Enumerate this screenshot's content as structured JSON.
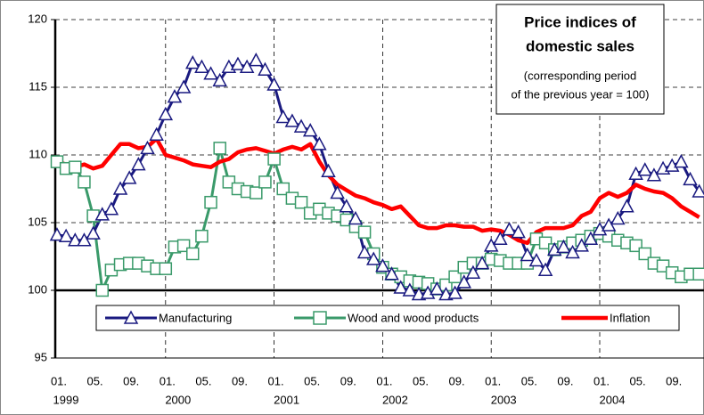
{
  "chart_data": {
    "type": "line",
    "title_lines": [
      "Price indices of",
      "domestic sales"
    ],
    "subtitle_lines": [
      "(corresponding period",
      "of the previous year = 100)"
    ],
    "categories": [
      "01.",
      null,
      null,
      null,
      "05.",
      null,
      null,
      null,
      "09.",
      null,
      null,
      null,
      "01.",
      null,
      null,
      null,
      "05.",
      null,
      null,
      null,
      "09.",
      null,
      null,
      null,
      "01.",
      null,
      null,
      null,
      "05.",
      null,
      null,
      null,
      "09.",
      null,
      null,
      null,
      "01.",
      null,
      null,
      null,
      "05.",
      null,
      null,
      null,
      "09.",
      null,
      null,
      null,
      "01.",
      null,
      null,
      null,
      "05.",
      null,
      null,
      null,
      "09.",
      null,
      null,
      null,
      "01.",
      null,
      null,
      null,
      "05.",
      null,
      null,
      null,
      "09.",
      null,
      null,
      null
    ],
    "years": [
      "1999",
      "2000",
      "2001",
      "2002",
      "2003",
      "2004"
    ],
    "ylim": [
      95,
      120
    ],
    "yticks": [
      95,
      100,
      105,
      110,
      115,
      120
    ],
    "grid": true,
    "legend": "bottom",
    "series": [
      {
        "name": "Manufacturing",
        "color": "#1a1a80",
        "marker": "triangle",
        "values": [
          104.1,
          104,
          103.7,
          103.7,
          104.2,
          105.6,
          106,
          107.5,
          108.3,
          109.3,
          110.5,
          111.5,
          113,
          114.3,
          115,
          116.8,
          116.5,
          116,
          115.5,
          116.5,
          116.7,
          116.5,
          117,
          116.3,
          115.2,
          112.8,
          112.5,
          112.1,
          111.8,
          110.8,
          108.8,
          107.2,
          106.2,
          105.3,
          102.8,
          102.3,
          101.8,
          101.2,
          100.2,
          100,
          99.7,
          99.8,
          100.1,
          99.7,
          99.8,
          100.6,
          101.3,
          102,
          103.3,
          103.8,
          104.5,
          104.3,
          102.6,
          102.2,
          101.5,
          103,
          103.2,
          102.8,
          103.3,
          103.8,
          104.5,
          104.8,
          105.3,
          106.2,
          108.6,
          108.9,
          108.5,
          109,
          109.2,
          109.5,
          108.2,
          107.3
        ]
      },
      {
        "name": "Wood and wood products",
        "color": "#3a9a6a",
        "marker": "square",
        "values": [
          109.5,
          109,
          109.1,
          108,
          105.5,
          100,
          101.5,
          101.9,
          102,
          102,
          101.8,
          101.6,
          101.6,
          103.2,
          103.3,
          102.7,
          104,
          106.5,
          110.5,
          108,
          107.5,
          107.3,
          107.2,
          108,
          109.7,
          107.5,
          106.8,
          106.5,
          105.7,
          106,
          105.7,
          105.5,
          105.2,
          104.7,
          104.3,
          102.7,
          101.7,
          101.2,
          101,
          100.7,
          100.6,
          100.5,
          100.1,
          100.4,
          101,
          101.7,
          102,
          102,
          102.3,
          102.2,
          102,
          102,
          102,
          103.8,
          103.5,
          103,
          103.2,
          103.5,
          103.7,
          104,
          104.2,
          104,
          103.7,
          103.5,
          103.3,
          102.7,
          102,
          101.8,
          101.3,
          101,
          101.2,
          101.2
        ]
      },
      {
        "name": "Inflation",
        "color": "#ff0000",
        "marker": "none",
        "values": [
          109.5,
          109.3,
          109.1,
          109.3,
          109,
          109.2,
          110,
          110.8,
          110.8,
          110.5,
          110.6,
          111.2,
          110,
          109.8,
          109.6,
          109.3,
          109.2,
          109.1,
          109.5,
          109.7,
          110.2,
          110.4,
          110.5,
          110.3,
          110.1,
          110.4,
          110.6,
          110.4,
          110.8,
          109.5,
          108.5,
          107.8,
          107.4,
          107,
          106.8,
          106.5,
          106.3,
          106,
          106.2,
          105.5,
          104.8,
          104.6,
          104.6,
          104.8,
          104.8,
          104.7,
          104.7,
          104.4,
          104.5,
          104.4,
          104.1,
          103.7,
          103.5,
          104.3,
          104.6,
          104.6,
          104.6,
          104.8,
          105.5,
          105.8,
          106.8,
          107.2,
          106.9,
          107.2,
          107.8,
          107.5,
          107.3,
          107.2,
          106.8,
          106.2,
          105.8,
          105.4
        ]
      }
    ]
  }
}
